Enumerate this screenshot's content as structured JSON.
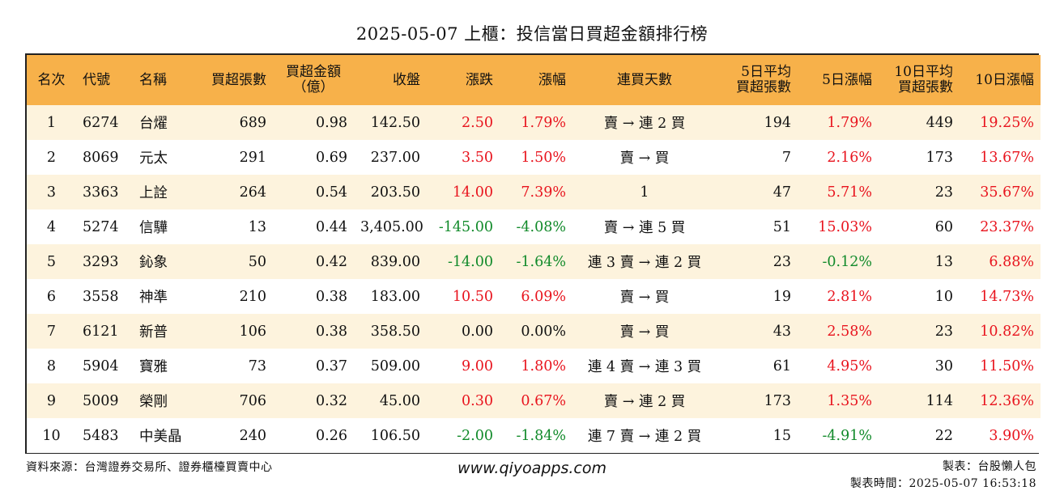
{
  "title": "2025-05-07 上櫃：投信當日買超金額排行榜",
  "headers": {
    "rank": "名次",
    "code": "代號",
    "name": "名稱",
    "shares": "買超張數",
    "amount_line1": "買超金額",
    "amount_line2": "（億）",
    "close": "收盤",
    "change": "漲跌",
    "pct": "漲幅",
    "streak": "連買天數",
    "avg5_line1": "5日平均",
    "avg5_line2": "買超張數",
    "pct5": "5日漲幅",
    "avg10_line1": "10日平均",
    "avg10_line2": "買超張數",
    "pct10": "10日漲幅"
  },
  "colors": {
    "header_bg": "#f7b14a",
    "row_alt": "#fdf3dd",
    "up": "#e8141e",
    "down": "#118a2a"
  },
  "rows": [
    {
      "rank": "1",
      "code": "6274",
      "name": "台燿",
      "shares": "689",
      "amount": "0.98",
      "close": "142.50",
      "change": "2.50",
      "change_dir": "up",
      "pct": "1.79%",
      "pct_dir": "up",
      "streak": "賣 → 連 2 買",
      "avg5": "194",
      "pct5": "1.79%",
      "pct5_dir": "up",
      "avg10": "449",
      "pct10": "19.25%",
      "pct10_dir": "up"
    },
    {
      "rank": "2",
      "code": "8069",
      "name": "元太",
      "shares": "291",
      "amount": "0.69",
      "close": "237.00",
      "change": "3.50",
      "change_dir": "up",
      "pct": "1.50%",
      "pct_dir": "up",
      "streak": "賣 → 買",
      "avg5": "7",
      "pct5": "2.16%",
      "pct5_dir": "up",
      "avg10": "173",
      "pct10": "13.67%",
      "pct10_dir": "up"
    },
    {
      "rank": "3",
      "code": "3363",
      "name": "上詮",
      "shares": "264",
      "amount": "0.54",
      "close": "203.50",
      "change": "14.00",
      "change_dir": "up",
      "pct": "7.39%",
      "pct_dir": "up",
      "streak": "1",
      "avg5": "47",
      "pct5": "5.71%",
      "pct5_dir": "up",
      "avg10": "23",
      "pct10": "35.67%",
      "pct10_dir": "up"
    },
    {
      "rank": "4",
      "code": "5274",
      "name": "信驊",
      "shares": "13",
      "amount": "0.44",
      "close": "3,405.00",
      "change": "-145.00",
      "change_dir": "down",
      "pct": "-4.08%",
      "pct_dir": "down",
      "streak": "賣 → 連 5 買",
      "avg5": "51",
      "pct5": "15.03%",
      "pct5_dir": "up",
      "avg10": "60",
      "pct10": "23.37%",
      "pct10_dir": "up"
    },
    {
      "rank": "5",
      "code": "3293",
      "name": "鈊象",
      "shares": "50",
      "amount": "0.42",
      "close": "839.00",
      "change": "-14.00",
      "change_dir": "down",
      "pct": "-1.64%",
      "pct_dir": "down",
      "streak": "連 3 賣 → 連 2 買",
      "avg5": "23",
      "pct5": "-0.12%",
      "pct5_dir": "down",
      "avg10": "13",
      "pct10": "6.88%",
      "pct10_dir": "up"
    },
    {
      "rank": "6",
      "code": "3558",
      "name": "神準",
      "shares": "210",
      "amount": "0.38",
      "close": "183.00",
      "change": "10.50",
      "change_dir": "up",
      "pct": "6.09%",
      "pct_dir": "up",
      "streak": "賣 → 買",
      "avg5": "19",
      "pct5": "2.81%",
      "pct5_dir": "up",
      "avg10": "10",
      "pct10": "14.73%",
      "pct10_dir": "up"
    },
    {
      "rank": "7",
      "code": "6121",
      "name": "新普",
      "shares": "106",
      "amount": "0.38",
      "close": "358.50",
      "change": "0.00",
      "change_dir": "flat",
      "pct": "0.00%",
      "pct_dir": "flat",
      "streak": "賣 → 買",
      "avg5": "43",
      "pct5": "2.58%",
      "pct5_dir": "up",
      "avg10": "23",
      "pct10": "10.82%",
      "pct10_dir": "up"
    },
    {
      "rank": "8",
      "code": "5904",
      "name": "寶雅",
      "shares": "73",
      "amount": "0.37",
      "close": "509.00",
      "change": "9.00",
      "change_dir": "up",
      "pct": "1.80%",
      "pct_dir": "up",
      "streak": "連 4 賣 → 連 3 買",
      "avg5": "61",
      "pct5": "4.95%",
      "pct5_dir": "up",
      "avg10": "30",
      "pct10": "11.50%",
      "pct10_dir": "up"
    },
    {
      "rank": "9",
      "code": "5009",
      "name": "榮剛",
      "shares": "706",
      "amount": "0.32",
      "close": "45.00",
      "change": "0.30",
      "change_dir": "up",
      "pct": "0.67%",
      "pct_dir": "up",
      "streak": "賣 → 連 2 買",
      "avg5": "173",
      "pct5": "1.35%",
      "pct5_dir": "up",
      "avg10": "114",
      "pct10": "12.36%",
      "pct10_dir": "up"
    },
    {
      "rank": "10",
      "code": "5483",
      "name": "中美晶",
      "shares": "240",
      "amount": "0.26",
      "close": "106.50",
      "change": "-2.00",
      "change_dir": "down",
      "pct": "-1.84%",
      "pct_dir": "down",
      "streak": "連 7 賣 → 連 2 買",
      "avg5": "15",
      "pct5": "-4.91%",
      "pct5_dir": "down",
      "avg10": "22",
      "pct10": "3.90%",
      "pct10_dir": "up"
    }
  ],
  "footer": {
    "source": "資料來源：台灣證券交易所、證券櫃檯買賣中心",
    "website": "www.qiyoapps.com",
    "maker": "製表：台股懶人包",
    "made_time": "製表時間：2025-05-07 16:53:18"
  }
}
